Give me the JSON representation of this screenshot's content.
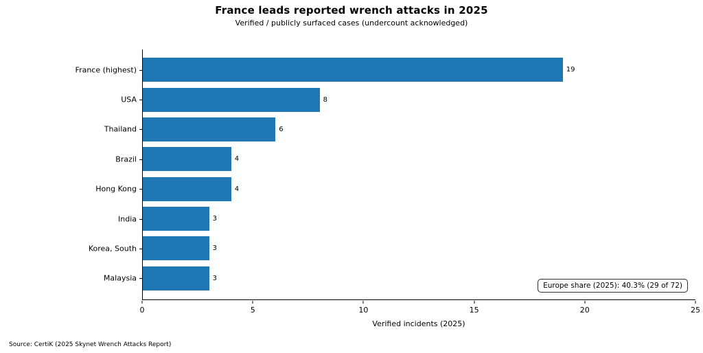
{
  "chart_data": {
    "type": "bar",
    "orientation": "horizontal",
    "title": "France leads reported wrench attacks in 2025",
    "subtitle": "Verified / publicly surfaced cases (undercount acknowledged)",
    "xlabel": "Verified incidents (2025)",
    "ylabel": "",
    "categories": [
      "France (highest)",
      "USA",
      "Thailand",
      "Brazil",
      "Hong Kong",
      "India",
      "Korea, South",
      "Malaysia"
    ],
    "values": [
      19,
      8,
      6,
      4,
      4,
      3,
      3,
      3
    ],
    "xlim": [
      0,
      25
    ],
    "xticks": [
      0,
      5,
      10,
      15,
      20,
      25
    ],
    "grid": false,
    "legend": "none",
    "bar_color": "#1f77b4",
    "axis_color": "#000000",
    "annotation": "Europe share (2025): 40.3% (29 of 72)",
    "source": "Source: CertiK (2025 Skynet Wrench Attacks Report)"
  }
}
